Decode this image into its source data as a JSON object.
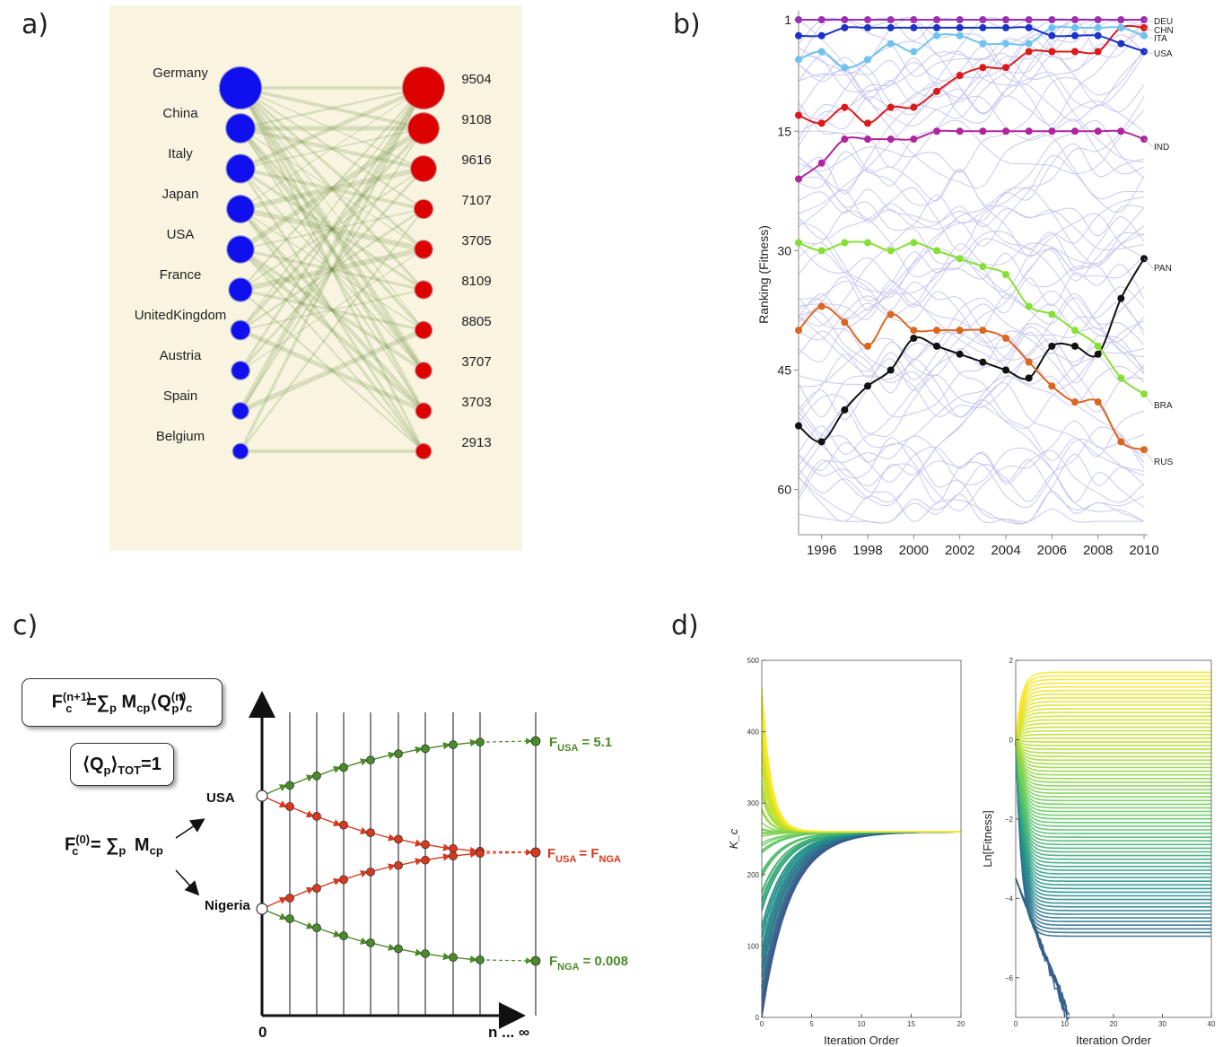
{
  "panels": {
    "a": "a)",
    "b": "b)",
    "c": "c)",
    "d": "d)"
  },
  "colors": {
    "countries": "#1010ee",
    "products": "#dd0000",
    "links": "#6b8f3a",
    "bg_a": "#f8f4e0",
    "grid_b": "#c8c8f0"
  },
  "panel_a": {
    "countries": [
      "Germany",
      "China",
      "Italy",
      "Japan",
      "USA",
      "France",
      "UnitedKingdom",
      "Austria",
      "Spain",
      "Belgium"
    ],
    "country_size": [
      1.0,
      0.62,
      0.6,
      0.57,
      0.56,
      0.45,
      0.33,
      0.3,
      0.25,
      0.22
    ],
    "products": [
      "9504",
      "9108",
      "9616",
      "7107",
      "3705",
      "8109",
      "8805",
      "3707",
      "3703",
      "2913"
    ],
    "product_size": [
      1.0,
      0.68,
      0.52,
      0.32,
      0.3,
      0.29,
      0.27,
      0.25,
      0.23,
      0.22
    ]
  },
  "chart_data": [
    {
      "type": "line",
      "panel": "b",
      "ylabel": "Ranking (Fitness)",
      "xlabel": "",
      "x": [
        1995,
        1996,
        1997,
        1998,
        1999,
        2000,
        2001,
        2002,
        2003,
        2004,
        2005,
        2006,
        2007,
        2008,
        2009,
        2010
      ],
      "xticks": [
        "1996",
        "1998",
        "2000",
        "2002",
        "2004",
        "2006",
        "2008",
        "2010"
      ],
      "yticks": [
        "1",
        "15",
        "30",
        "45",
        "60"
      ],
      "ylim": [
        1,
        65
      ],
      "y_inverted": true,
      "series": [
        {
          "name": "DEU",
          "color": "#9a2fb4",
          "values": [
            1,
            1,
            1,
            1,
            1,
            1,
            1,
            1,
            1,
            1,
            1,
            1,
            1,
            1,
            1,
            1
          ]
        },
        {
          "name": "CHN",
          "color": "#dd1a1a",
          "values": [
            13,
            14,
            12,
            14,
            12,
            12,
            10,
            8,
            7,
            7,
            5,
            5,
            5,
            5,
            2,
            2
          ]
        },
        {
          "name": "ITA",
          "color": "#6fc2f0",
          "values": [
            6,
            5,
            7,
            6,
            4,
            5,
            3,
            3,
            4,
            4,
            4,
            2,
            2,
            2,
            2,
            3
          ]
        },
        {
          "name": "USA",
          "color": "#1a32c8",
          "values": [
            3,
            3,
            2,
            2,
            2,
            2,
            2,
            2,
            2,
            2,
            2,
            3,
            3,
            3,
            4,
            5
          ]
        },
        {
          "name": "IND",
          "color": "#b0249e",
          "values": [
            21,
            19,
            16,
            16,
            16,
            16,
            15,
            15,
            15,
            15,
            15,
            15,
            15,
            15,
            15,
            16
          ]
        },
        {
          "name": "PAN",
          "color": "#111111",
          "values": [
            52,
            54,
            50,
            47,
            45,
            41,
            42,
            43,
            44,
            45,
            46,
            42,
            42,
            43,
            36,
            31
          ]
        },
        {
          "name": "BRA",
          "color": "#86e034",
          "values": [
            29,
            30,
            29,
            29,
            30,
            29,
            30,
            31,
            32,
            33,
            37,
            38,
            40,
            42,
            46,
            48
          ]
        },
        {
          "name": "RUS",
          "color": "#dc6620",
          "values": [
            40,
            37,
            39,
            42,
            38,
            40,
            40,
            40,
            40,
            41,
            44,
            47,
            49,
            49,
            54,
            55
          ]
        }
      ]
    },
    {
      "type": "line",
      "panel": "d-left",
      "xlabel": "Iteration Order",
      "ylabel": "K_c",
      "xticks": [
        "0",
        "5",
        "10",
        "15",
        "20"
      ],
      "yticks": [
        "0",
        "100",
        "200",
        "300",
        "400",
        "500"
      ],
      "xlim": [
        0,
        20
      ],
      "ylim": [
        0,
        500
      ],
      "converged_value": 260
    },
    {
      "type": "line",
      "panel": "d-right",
      "xlabel": "Iteration Order",
      "ylabel": "Ln[Fitness]",
      "xticks": [
        "0",
        "10",
        "20",
        "30",
        "40"
      ],
      "yticks": [
        "2",
        "0",
        "-2",
        "-4",
        "-6"
      ],
      "xlim": [
        0,
        40
      ],
      "ylim": [
        -7,
        2
      ]
    }
  ],
  "panel_c": {
    "formula_top": {
      "lhs": "F",
      "lhs_sub": "c",
      "lhs_sup": "(n+1)",
      "eq": "=∑",
      "p": "p",
      "m": "M",
      "m_sub": "cp",
      "q": "Q",
      "q_sub": "p",
      "q_sup": "(n)",
      "c": "c"
    },
    "formula_mid": {
      "q": "Q",
      "q_sub": "p",
      "tot": "TOT",
      "rhs": "=1"
    },
    "formula_init": {
      "lhs": "F",
      "lhs_sub": "c",
      "lhs_sup": "(0)",
      "eq": "= ∑",
      "p": "p",
      "m": "M",
      "m_sub": "cp"
    },
    "usa_label": "USA",
    "nigeria_label": "Nigeria",
    "x_zero": "0",
    "x_end": "n ... ∞",
    "f_usa": {
      "f": "F",
      "sub": "USA",
      "val": "= 5.1"
    },
    "f_equal": {
      "f1": "F",
      "sub1": "USA",
      "eq": "= F",
      "sub2": "NGA"
    },
    "f_nga": {
      "f": "F",
      "sub": "NGA",
      "val": "= 0.008"
    },
    "green": "#4a8a28",
    "red": "#d8381c"
  }
}
